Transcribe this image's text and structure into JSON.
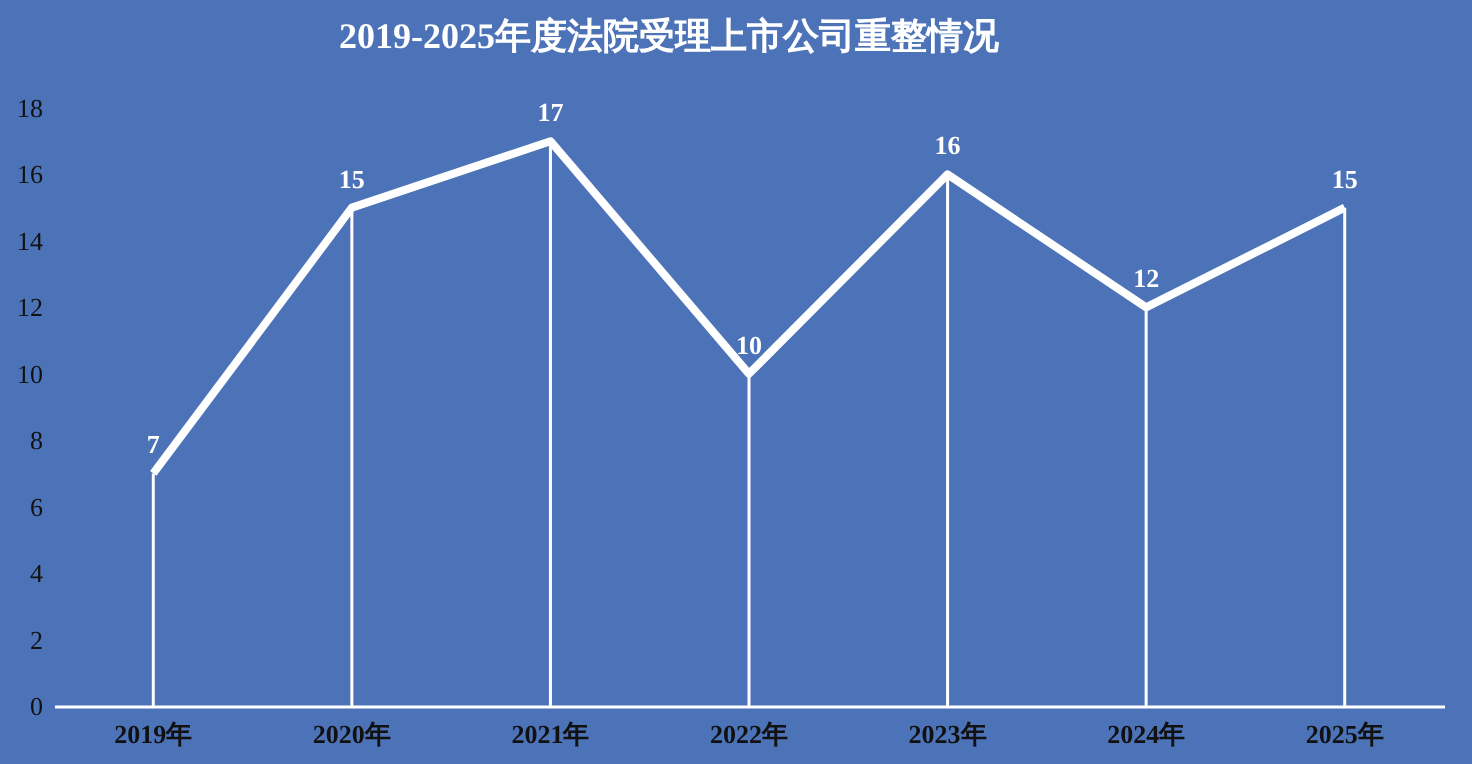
{
  "chart_data": {
    "type": "line",
    "title": "2019-2025年度法院受理上市公司重整情况",
    "categories": [
      "2019年",
      "2020年",
      "2021年",
      "2022年",
      "2023年",
      "2024年",
      "2025年"
    ],
    "series": [
      {
        "color": "#ffffff",
        "values": [
          7,
          15,
          17,
          10,
          16,
          12,
          15
        ]
      }
    ],
    "ylim": [
      0,
      18
    ],
    "yticks": [
      0,
      2,
      4,
      6,
      8,
      10,
      12,
      14,
      16,
      18
    ],
    "data_labels": true,
    "grid": "x",
    "legend": false,
    "marker": "none",
    "line_style": "solid"
  }
}
